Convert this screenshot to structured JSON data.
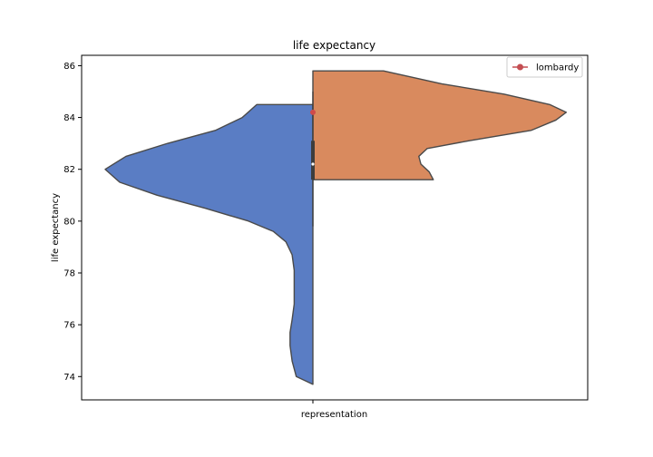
{
  "chart_data": {
    "type": "violin",
    "title": "life expectancy",
    "xlabel": "representation",
    "ylabel": "life expectancy",
    "ylim": [
      73.1,
      86.4
    ],
    "yticks": [
      74,
      76,
      78,
      80,
      82,
      84,
      86
    ],
    "categories": [
      "representation"
    ],
    "grid": false,
    "legend_position": "top-right",
    "series": [
      {
        "side": "left",
        "color": "#5a7dc4",
        "profile": [
          {
            "y": 73.7,
            "w": 0.0
          },
          {
            "y": 74.0,
            "w": 0.08
          },
          {
            "y": 74.6,
            "w": 0.1
          },
          {
            "y": 75.2,
            "w": 0.11
          },
          {
            "y": 75.7,
            "w": 0.11
          },
          {
            "y": 76.2,
            "w": 0.1
          },
          {
            "y": 76.8,
            "w": 0.09
          },
          {
            "y": 77.4,
            "w": 0.09
          },
          {
            "y": 78.1,
            "w": 0.09
          },
          {
            "y": 78.7,
            "w": 0.1
          },
          {
            "y": 79.2,
            "w": 0.13
          },
          {
            "y": 79.6,
            "w": 0.19
          },
          {
            "y": 80.0,
            "w": 0.31
          },
          {
            "y": 80.5,
            "w": 0.52
          },
          {
            "y": 81.0,
            "w": 0.75
          },
          {
            "y": 81.5,
            "w": 0.93
          },
          {
            "y": 82.0,
            "w": 1.0
          },
          {
            "y": 82.5,
            "w": 0.9
          },
          {
            "y": 83.0,
            "w": 0.7
          },
          {
            "y": 83.5,
            "w": 0.47
          },
          {
            "y": 84.0,
            "w": 0.34
          },
          {
            "y": 84.5,
            "w": 0.27
          }
        ]
      },
      {
        "side": "right",
        "color": "#d98a5e",
        "profile": [
          {
            "y": 81.6,
            "w": 0.58
          },
          {
            "y": 81.9,
            "w": 0.56
          },
          {
            "y": 82.2,
            "w": 0.52
          },
          {
            "y": 82.5,
            "w": 0.51
          },
          {
            "y": 82.8,
            "w": 0.55
          },
          {
            "y": 83.1,
            "w": 0.75
          },
          {
            "y": 83.5,
            "w": 1.05
          },
          {
            "y": 83.9,
            "w": 1.17
          },
          {
            "y": 84.2,
            "w": 1.22
          },
          {
            "y": 84.5,
            "w": 1.14
          },
          {
            "y": 84.9,
            "w": 0.92
          },
          {
            "y": 85.3,
            "w": 0.62
          },
          {
            "y": 85.8,
            "w": 0.34
          }
        ]
      }
    ],
    "inner_box": {
      "q1": 81.6,
      "median": 82.2,
      "q3": 83.1,
      "whisker_low": 79.8,
      "whisker_high": 85.0
    },
    "highlight": {
      "label": "lombardy",
      "y": 84.2,
      "color": "#d04a4a"
    }
  }
}
